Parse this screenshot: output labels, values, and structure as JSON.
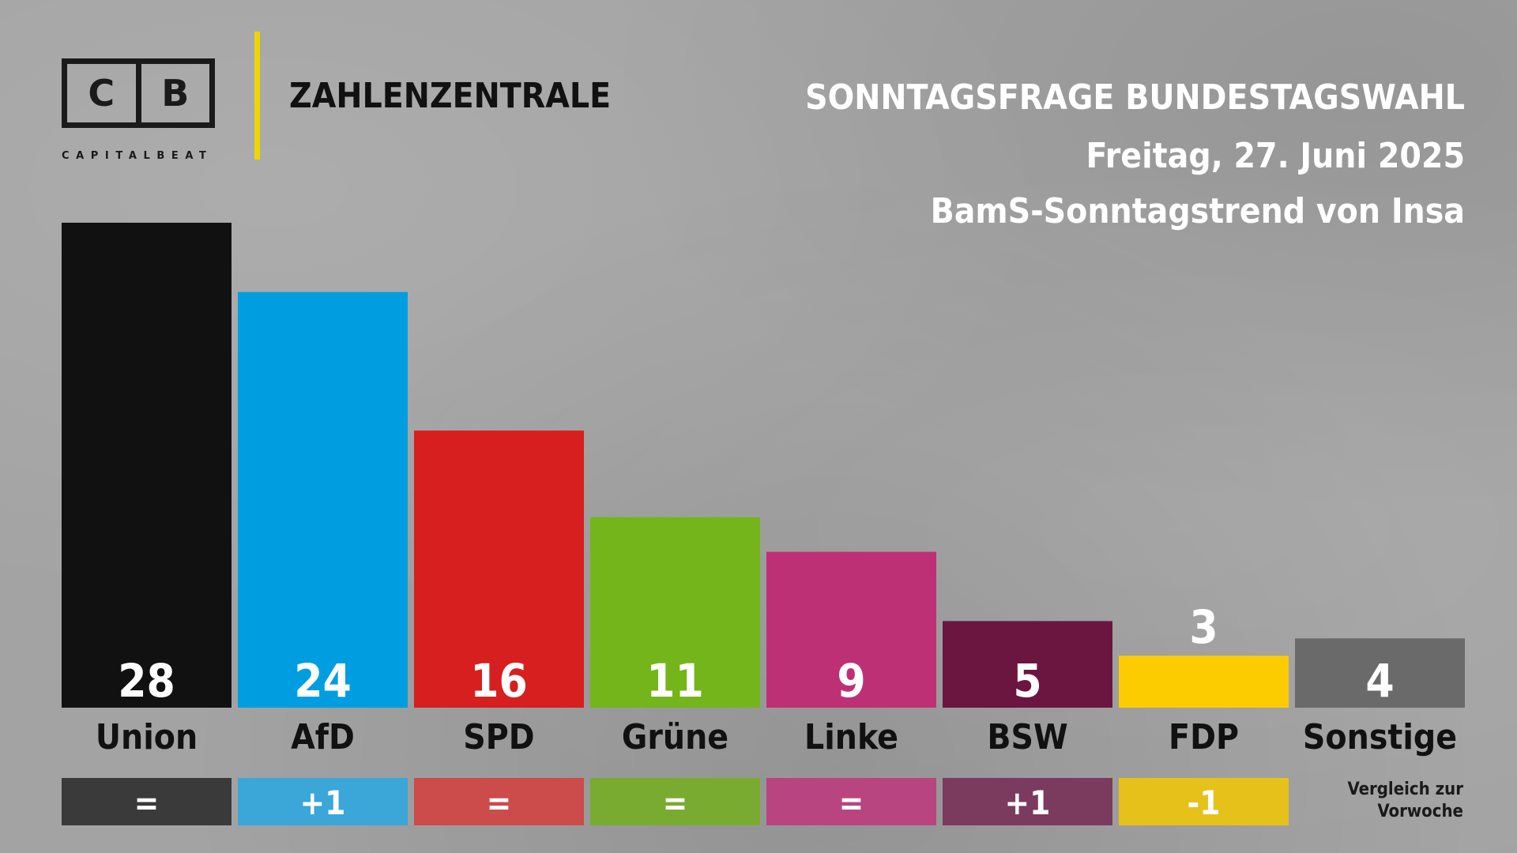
{
  "brand": {
    "logo_left": "C",
    "logo_right": "B",
    "logo_caption": "CAPITALBEAT",
    "title": "ZAHLENZENTRALE",
    "accent_color": "#f0d400"
  },
  "header": {
    "title": "SONNTAGSFRAGE BUNDESTAGSWAHL",
    "date": "Freitag, 27. Juni 2025",
    "source": "BamS-Sonntagstrend von Insa"
  },
  "comparison_note": [
    "Vergleich zur",
    "Vorwoche"
  ],
  "chart_data": {
    "type": "bar",
    "categories": [
      "Union",
      "AfD",
      "SPD",
      "Grüne",
      "Linke",
      "BSW",
      "FDP",
      "Sonstige"
    ],
    "values": [
      28,
      24,
      16,
      11,
      9,
      5,
      3,
      4
    ],
    "changes": [
      "=",
      "+1",
      "=",
      "=",
      "=",
      "+1",
      "-1",
      ""
    ],
    "colors": [
      "#111111",
      "#009ee0",
      "#d71f1f",
      "#74b51b",
      "#be3075",
      "#6a1640",
      "#fccb00",
      "#6a6a6a"
    ],
    "change_colors": [
      "#3a3a3a",
      "#3ba6d8",
      "#cc4b4b",
      "#7aab31",
      "#b8457f",
      "#7a3b5e",
      "#e6c11a",
      ""
    ],
    "title": "SONNTAGSFRAGE BUNDESTAGSWAHL",
    "xlabel": "",
    "ylabel": "",
    "ylim": [
      0,
      28
    ],
    "grid": false,
    "legend": "none"
  }
}
